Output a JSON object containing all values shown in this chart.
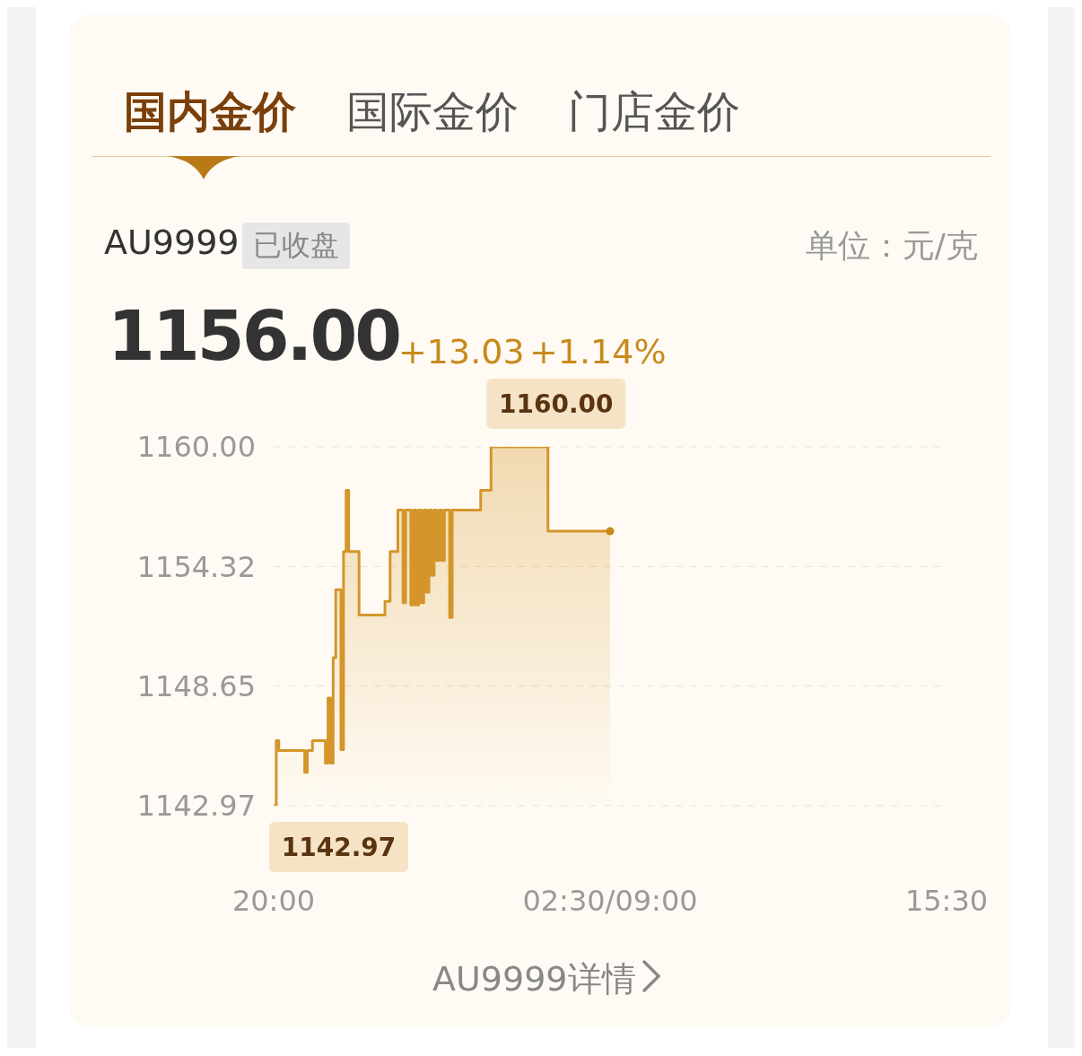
{
  "chart_data": {
    "type": "step",
    "title": "AU9999",
    "subtitle": "已收盘",
    "annotations": [
      "国内金价",
      "国际金价",
      "门店金价",
      "1156.00",
      "+13.03",
      "+1.14%",
      "AU9999详情",
      "单位：元/克",
      "1160.00",
      {
        "text": "1142.97",
        "x": "20:00",
        "y": 1142.97
      }
    ],
    "categories": [
      "20:00",
      null,
      null,
      null,
      null,
      null,
      null,
      null,
      null,
      null,
      null,
      null,
      null,
      null,
      null,
      null,
      null,
      null,
      null,
      null,
      null,
      null,
      null,
      null,
      null,
      null,
      null,
      null,
      null,
      null,
      null,
      null,
      null,
      null,
      null,
      null,
      null,
      null,
      null,
      null,
      null,
      null,
      null,
      null,
      null,
      null,
      null,
      null,
      null,
      null,
      null,
      null,
      null,
      null,
      null,
      null,
      null,
      null,
      null,
      null,
      null,
      null,
      null,
      null,
      null,
      null,
      null,
      null,
      null,
      null,
      null,
      null,
      null,
      null,
      null,
      null,
      null,
      null,
      null,
      null,
      null,
      null,
      null,
      null,
      null,
      null,
      null,
      null,
      null,
      null,
      null,
      null,
      null,
      null,
      null,
      null,
      null,
      null,
      null,
      null,
      null,
      null,
      null,
      null,
      null,
      null,
      null,
      null,
      null,
      null,
      null,
      null,
      null,
      null,
      null,
      null,
      null,
      null,
      null,
      null,
      null,
      null,
      null,
      null,
      null,
      null,
      null,
      null,
      null,
      null,
      "02:30/09:00",
      null,
      null,
      null,
      null,
      null,
      null,
      null,
      null,
      null,
      null,
      null,
      null,
      null,
      null,
      null,
      null,
      null,
      null,
      null,
      null,
      null,
      null,
      null,
      null,
      null,
      null,
      null,
      null,
      null,
      null,
      null,
      null,
      null,
      null,
      null,
      null,
      null,
      null,
      null,
      null,
      null,
      null,
      null,
      null,
      null,
      null,
      null,
      null,
      null,
      null,
      null,
      null,
      null,
      null,
      null,
      null,
      null,
      null,
      null,
      null,
      null,
      null,
      null,
      null,
      null,
      null,
      null,
      null,
      null,
      null,
      null,
      null,
      null,
      null,
      null,
      null,
      null,
      null,
      null,
      null,
      null,
      null,
      null,
      null,
      null,
      null,
      null,
      null,
      null,
      null,
      null,
      null,
      null,
      null,
      null,
      null,
      null,
      null,
      null,
      null,
      null,
      null,
      null,
      null,
      null,
      null,
      null,
      null,
      null,
      null,
      null,
      null,
      null,
      null,
      null,
      null,
      null,
      null,
      null,
      null,
      null,
      null,
      null,
      null,
      null,
      null,
      null,
      null,
      null,
      "15:30"
    ],
    "ylim": [
      1142.97,
      1160
    ],
    "yticks": [
      1142.97,
      1148.65,
      1154.32,
      {
        "value": 1160,
        "label": "1160.00"
      }
    ],
    "grid": "y",
    "series": [
      {
        "color": "#d4962a",
        "values": [
          1142.97,
          1146.06,
          1145.59,
          1145.59,
          1145.59,
          1145.59,
          1145.59,
          1145.59,
          1145.59,
          1145.59,
          1145.59,
          1145.59,
          1144.56,
          1145.59,
          1145.59,
          1146.06,
          1146.06,
          1146.06,
          1146.06,
          1146.06,
          1144.99,
          1148.08,
          1144.99,
          1150.0,
          1153.22,
          1153.22,
          1145.63,
          1155.03,
          1157.94,
          1155.03,
          1155.03,
          1155.03,
          1155.03,
          1152.02,
          1152.02,
          1152.02,
          1152.02,
          1152.02,
          1152.02,
          1152.02,
          1152.02,
          1152.02,
          1152.02,
          1152.67,
          1152.67,
          1155.03,
          1155.03,
          1155.03,
          1157.0,
          1157.0,
          1152.6,
          1157.0,
          1157.0,
          1152.5,
          1157.0,
          1152.5,
          1157.0,
          1152.6,
          1157.0,
          1153.1,
          1157.0,
          1153.9,
          1157.0,
          1154.6,
          1157.0,
          1154.6,
          1157.0,
          1157.0,
          1151.9,
          1157.0,
          1157.0,
          1157.0,
          1157.0,
          1157.0,
          1157.0,
          1157.0,
          1157.0,
          1157.0,
          1157.0,
          1157.0,
          1157.94,
          1157.94,
          1157.94,
          1157.94,
          1160.0,
          1160.0,
          1160.0,
          1160.0,
          1160.0,
          1160.0,
          1160.0,
          1160.0,
          1160.0,
          1160.0,
          1160.0,
          1160.0,
          1160.0,
          1160.0,
          1160.0,
          1160.0,
          1160.0,
          1160.0,
          1160.0,
          1160.0,
          1160.0,
          1160.0,
          1156.0,
          1156.0,
          1156.0,
          1156.0,
          1156.0,
          1156.0,
          1156.0,
          1156.0,
          1156.0,
          1156.0,
          1156.0,
          1156.0,
          1156.0,
          1156.0,
          1156.0,
          1156.0,
          1156.0,
          1156.0,
          1156.0,
          1156.0,
          1156.0,
          1156.0,
          1156.0,
          1156.0,
          1156.0,
          null,
          null,
          null,
          null,
          null,
          null,
          null,
          null,
          null,
          null,
          null,
          null,
          null,
          null,
          null,
          null,
          null,
          null,
          null,
          null,
          null,
          null,
          null,
          null,
          null,
          null,
          null,
          null,
          null,
          null,
          null,
          null,
          null,
          null,
          null,
          null,
          null,
          null,
          null,
          null,
          null,
          null,
          null,
          null,
          null,
          null,
          null,
          null,
          null,
          null,
          null,
          null,
          null,
          null,
          null,
          null,
          null,
          null,
          null,
          null,
          null,
          null,
          null,
          null,
          null,
          null,
          null,
          null,
          null,
          null,
          null,
          null,
          null,
          null,
          null,
          null,
          null,
          null,
          null,
          null,
          null,
          null,
          null,
          null,
          null,
          null,
          null,
          null,
          null,
          null,
          null,
          null,
          null,
          null,
          null,
          null,
          null,
          null,
          null,
          null,
          null,
          null,
          null,
          null,
          null,
          null,
          null,
          null,
          null,
          null,
          null,
          null,
          null,
          null,
          null,
          null,
          null,
          null,
          null,
          null,
          null,
          null,
          null,
          null,
          null,
          null,
          null,
          null,
          null,
          null
        ]
      },
      {
        "type": "scatter",
        "color": "#c98a1c",
        "marker": "circle",
        "x": [
          "02:30/09:00"
        ],
        "values": [
          1156.0
        ]
      }
    ]
  }
}
